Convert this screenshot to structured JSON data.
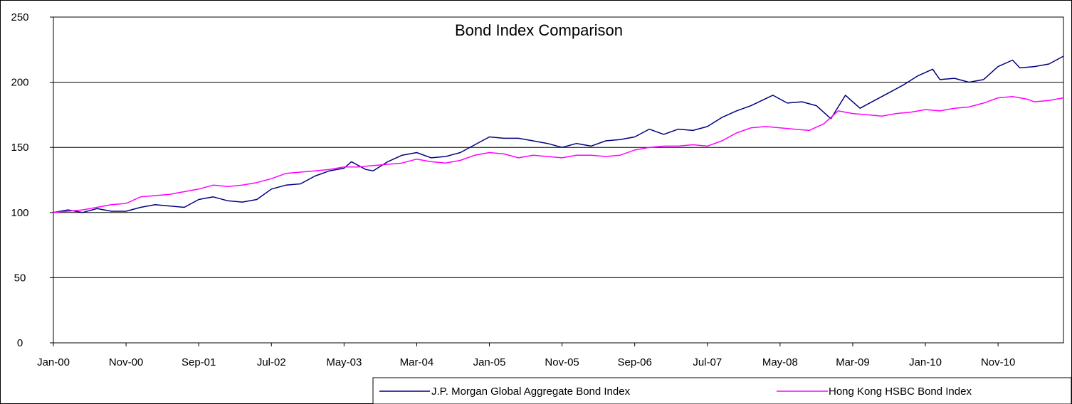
{
  "chart_data": {
    "type": "line",
    "title": "Bond Index Comparison",
    "xlabel": "",
    "ylabel": "",
    "ylim": [
      0,
      250
    ],
    "yticks": [
      0,
      50,
      100,
      150,
      200,
      250
    ],
    "grid": "horizontal",
    "legend_position": "bottom-right",
    "x_tick_labels": [
      "Jan-00",
      "Nov-00",
      "Sep-01",
      "Jul-02",
      "May-03",
      "Mar-04",
      "Jan-05",
      "Nov-05",
      "Sep-06",
      "Jul-07",
      "May-08",
      "Mar-09",
      "Jan-10",
      "Nov-10"
    ],
    "x_start": "Jan-00",
    "x_end": "Aug-11",
    "series": [
      {
        "name": "J.P. Morgan Global Aggregate Bond Index",
        "color": "#000080",
        "points": [
          [
            "Jan-00",
            100
          ],
          [
            "Mar-00",
            102
          ],
          [
            "May-00",
            100
          ],
          [
            "Jul-00",
            103
          ],
          [
            "Sep-00",
            101
          ],
          [
            "Nov-00",
            101
          ],
          [
            "Jan-01",
            104
          ],
          [
            "Mar-01",
            106
          ],
          [
            "May-01",
            105
          ],
          [
            "Jul-01",
            104
          ],
          [
            "Sep-01",
            110
          ],
          [
            "Nov-01",
            112
          ],
          [
            "Jan-02",
            109
          ],
          [
            "Mar-02",
            108
          ],
          [
            "May-02",
            110
          ],
          [
            "Jul-02",
            118
          ],
          [
            "Sep-02",
            121
          ],
          [
            "Nov-02",
            122
          ],
          [
            "Jan-03",
            128
          ],
          [
            "Mar-03",
            132
          ],
          [
            "May-03",
            134
          ],
          [
            "Jun-03",
            139
          ],
          [
            "Aug-03",
            133
          ],
          [
            "Sep-03",
            132
          ],
          [
            "Nov-03",
            139
          ],
          [
            "Jan-04",
            144
          ],
          [
            "Mar-04",
            146
          ],
          [
            "May-04",
            142
          ],
          [
            "Jul-04",
            143
          ],
          [
            "Sep-04",
            146
          ],
          [
            "Nov-04",
            152
          ],
          [
            "Jan-05",
            158
          ],
          [
            "Mar-05",
            157
          ],
          [
            "May-05",
            157
          ],
          [
            "Jul-05",
            155
          ],
          [
            "Sep-05",
            153
          ],
          [
            "Nov-05",
            150
          ],
          [
            "Jan-06",
            153
          ],
          [
            "Mar-06",
            151
          ],
          [
            "May-06",
            155
          ],
          [
            "Jul-06",
            156
          ],
          [
            "Sep-06",
            158
          ],
          [
            "Nov-06",
            164
          ],
          [
            "Jan-07",
            160
          ],
          [
            "Mar-07",
            164
          ],
          [
            "May-07",
            163
          ],
          [
            "Jul-07",
            166
          ],
          [
            "Sep-07",
            173
          ],
          [
            "Nov-07",
            178
          ],
          [
            "Jan-08",
            182
          ],
          [
            "Apr-08",
            190
          ],
          [
            "Jun-08",
            184
          ],
          [
            "Aug-08",
            185
          ],
          [
            "Oct-08",
            182
          ],
          [
            "Dec-08",
            172
          ],
          [
            "Feb-09",
            190
          ],
          [
            "Mar-09",
            185
          ],
          [
            "Apr-09",
            180
          ],
          [
            "Jun-09",
            186
          ],
          [
            "Aug-09",
            192
          ],
          [
            "Oct-09",
            198
          ],
          [
            "Dec-09",
            205
          ],
          [
            "Feb-10",
            210
          ],
          [
            "Mar-10",
            202
          ],
          [
            "May-10",
            203
          ],
          [
            "Jul-10",
            200
          ],
          [
            "Sep-10",
            202
          ],
          [
            "Nov-10",
            212
          ],
          [
            "Jan-11",
            217
          ],
          [
            "Feb-11",
            211
          ],
          [
            "Apr-11",
            212
          ],
          [
            "Jun-11",
            214
          ],
          [
            "Aug-11",
            220
          ]
        ]
      },
      {
        "name": "Hong Kong HSBC Bond Index",
        "color": "#FF00FF",
        "points": [
          [
            "Jan-00",
            100
          ],
          [
            "Mar-00",
            101
          ],
          [
            "May-00",
            102
          ],
          [
            "Jul-00",
            104
          ],
          [
            "Sep-00",
            106
          ],
          [
            "Nov-00",
            107
          ],
          [
            "Jan-01",
            112
          ],
          [
            "Mar-01",
            113
          ],
          [
            "May-01",
            114
          ],
          [
            "Jul-01",
            116
          ],
          [
            "Sep-01",
            118
          ],
          [
            "Nov-01",
            121
          ],
          [
            "Jan-02",
            120
          ],
          [
            "Mar-02",
            121
          ],
          [
            "May-02",
            123
          ],
          [
            "Jul-02",
            126
          ],
          [
            "Sep-02",
            130
          ],
          [
            "Nov-02",
            131
          ],
          [
            "Jan-03",
            132
          ],
          [
            "Mar-03",
            133
          ],
          [
            "May-03",
            135
          ],
          [
            "Jul-03",
            135
          ],
          [
            "Sep-03",
            136
          ],
          [
            "Nov-03",
            137
          ],
          [
            "Jan-04",
            138
          ],
          [
            "Mar-04",
            141
          ],
          [
            "May-04",
            139
          ],
          [
            "Jul-04",
            138
          ],
          [
            "Sep-04",
            140
          ],
          [
            "Nov-04",
            144
          ],
          [
            "Jan-05",
            146
          ],
          [
            "Mar-05",
            145
          ],
          [
            "May-05",
            142
          ],
          [
            "Jul-05",
            144
          ],
          [
            "Sep-05",
            143
          ],
          [
            "Nov-05",
            142
          ],
          [
            "Jan-06",
            144
          ],
          [
            "Mar-06",
            144
          ],
          [
            "May-06",
            143
          ],
          [
            "Jul-06",
            144
          ],
          [
            "Sep-06",
            148
          ],
          [
            "Nov-06",
            150
          ],
          [
            "Jan-07",
            151
          ],
          [
            "Mar-07",
            151
          ],
          [
            "May-07",
            152
          ],
          [
            "Jul-07",
            151
          ],
          [
            "Sep-07",
            155
          ],
          [
            "Nov-07",
            161
          ],
          [
            "Jan-08",
            165
          ],
          [
            "Mar-08",
            166
          ],
          [
            "May-08",
            165
          ],
          [
            "Jul-08",
            164
          ],
          [
            "Sep-08",
            163
          ],
          [
            "Nov-08",
            168
          ],
          [
            "Jan-09",
            178
          ],
          [
            "Mar-09",
            176
          ],
          [
            "May-09",
            175
          ],
          [
            "Jul-09",
            174
          ],
          [
            "Sep-09",
            176
          ],
          [
            "Nov-09",
            177
          ],
          [
            "Jan-10",
            179
          ],
          [
            "Mar-10",
            178
          ],
          [
            "May-10",
            180
          ],
          [
            "Jul-10",
            181
          ],
          [
            "Sep-10",
            184
          ],
          [
            "Nov-10",
            188
          ],
          [
            "Jan-11",
            189
          ],
          [
            "Mar-11",
            187
          ],
          [
            "Apr-11",
            185
          ],
          [
            "Jun-11",
            186
          ],
          [
            "Aug-11",
            188
          ]
        ]
      }
    ]
  }
}
